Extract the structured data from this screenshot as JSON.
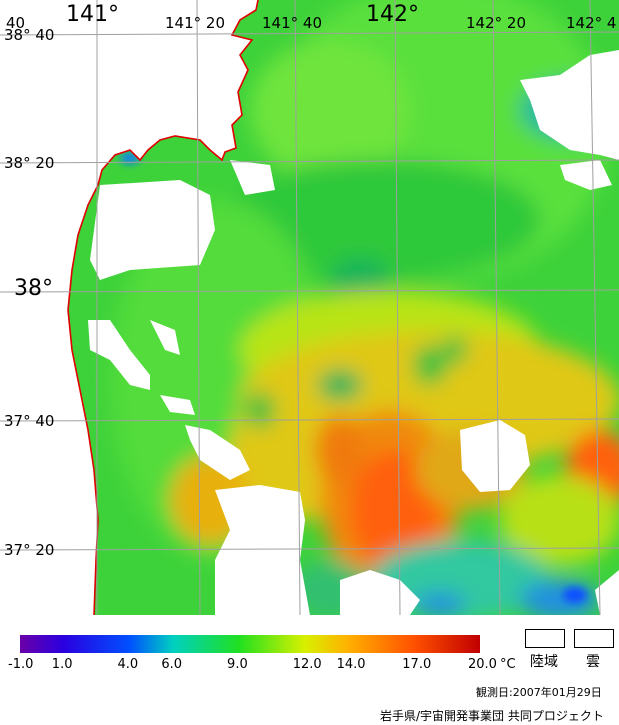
{
  "map": {
    "longitude_labels": [
      "40",
      "141°",
      "141° 20",
      "141° 40",
      "142°",
      "142° 20",
      "142° 4"
    ],
    "latitude_labels": [
      "38° 40",
      "38° 20",
      "38°",
      "37° 40",
      "37° 20"
    ],
    "colors": {
      "land_or_cloud": "#ffffff",
      "coastline": "#e00000",
      "graticule": "#a0a0a0"
    }
  },
  "colorbar": {
    "unit": "°C",
    "tick_labels": [
      "-1.0",
      "1.0",
      "4.0",
      "6.0",
      "9.0",
      "12.0",
      "14.0",
      "17.0",
      "20.0"
    ],
    "tick_values": [
      -1.0,
      1.0,
      4.0,
      6.0,
      9.0,
      12.0,
      14.0,
      17.0,
      20.0
    ],
    "range": [
      -1.0,
      20.0
    ],
    "stops": [
      {
        "value": -1.0,
        "color": "#6a00a8"
      },
      {
        "value": 1.0,
        "color": "#2a00e0"
      },
      {
        "value": 4.0,
        "color": "#0050ff"
      },
      {
        "value": 6.0,
        "color": "#00d0c0"
      },
      {
        "value": 9.0,
        "color": "#20e020"
      },
      {
        "value": 12.0,
        "color": "#d8f000"
      },
      {
        "value": 14.0,
        "color": "#ffb000"
      },
      {
        "value": 17.0,
        "color": "#ff5000"
      },
      {
        "value": 20.0,
        "color": "#c00000"
      }
    ]
  },
  "legend": {
    "land_label": "陸域",
    "cloud_label": "雲"
  },
  "footer": {
    "observation_date": "観測日:2007年01月29日",
    "credit": "岩手県/宇宙開発事業団 共同プロジェクト"
  }
}
